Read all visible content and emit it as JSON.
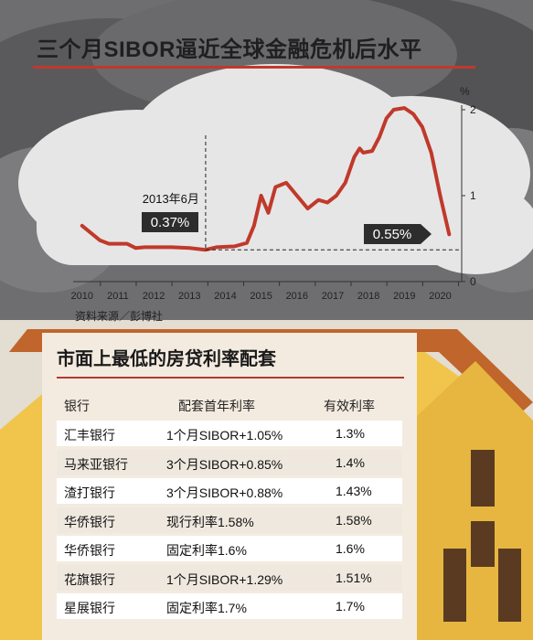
{
  "chart_data": {
    "type": "line",
    "title": "三个月SIBOR逼近全球金融危机后水平",
    "y_unit_label": "%",
    "y_ticks": [
      "2",
      "1",
      "0"
    ],
    "ylim": [
      0,
      2
    ],
    "x_ticks": [
      "2010",
      "2011",
      "2012",
      "2013",
      "2014",
      "2015",
      "2016",
      "2017",
      "2018",
      "2019",
      "2020"
    ],
    "xlim": [
      2009.75,
      2020.6
    ],
    "series": [
      {
        "x": [
          2010.0,
          2010.5,
          2010.75,
          2011.25,
          2011.5,
          2011.75,
          2012.5,
          2013.0,
          2013.45,
          2013.75,
          2014.25,
          2014.6,
          2014.8,
          2015.0,
          2015.2,
          2015.4,
          2015.7,
          2016.0,
          2016.3,
          2016.6,
          2016.85,
          2017.1,
          2017.35,
          2017.6,
          2017.75,
          2017.85,
          2018.1,
          2018.3,
          2018.5,
          2018.7,
          2019.0,
          2019.25,
          2019.5,
          2019.75,
          2020.0,
          2020.25
        ],
        "y": [
          0.65,
          0.48,
          0.44,
          0.44,
          0.39,
          0.4,
          0.4,
          0.39,
          0.37,
          0.4,
          0.41,
          0.45,
          0.65,
          1.0,
          0.8,
          1.1,
          1.15,
          1.0,
          0.85,
          0.95,
          0.92,
          1.0,
          1.15,
          1.45,
          1.55,
          1.5,
          1.52,
          1.68,
          1.9,
          2.0,
          2.02,
          1.95,
          1.8,
          1.5,
          1.0,
          0.55
        ]
      }
    ],
    "annotations": [
      {
        "label": "2013年6月",
        "value": "0.37%",
        "x": 2013.45,
        "y": 0.37
      },
      {
        "label": "",
        "value": "0.55%",
        "x": 2020.25,
        "y": 0.55
      }
    ],
    "source": "资料来源／彭博社",
    "colors": {
      "line": "#c0392b",
      "roof": "#c0652b",
      "wall": "#f1c54c",
      "callout": "#2d2d2d"
    }
  },
  "table": {
    "title": "市面上最低的房贷利率配套",
    "headers": [
      "银行",
      "配套首年利率",
      "有效利率"
    ],
    "rows": [
      [
        "汇丰银行",
        "1个月SIBOR+1.05%",
        "1.3%"
      ],
      [
        "马来亚银行",
        "3个月SIBOR+0.85%",
        "1.4%"
      ],
      [
        "渣打银行",
        "3个月SIBOR+0.88%",
        "1.43%"
      ],
      [
        "华侨银行",
        "现行利率1.58%",
        "1.58%"
      ],
      [
        "华侨银行",
        "固定利率1.6%",
        "1.6%"
      ],
      [
        "花旗银行",
        "1个月SIBOR+1.29%",
        "1.51%"
      ],
      [
        "星展银行",
        "固定利率1.7%",
        "1.7%"
      ]
    ]
  }
}
